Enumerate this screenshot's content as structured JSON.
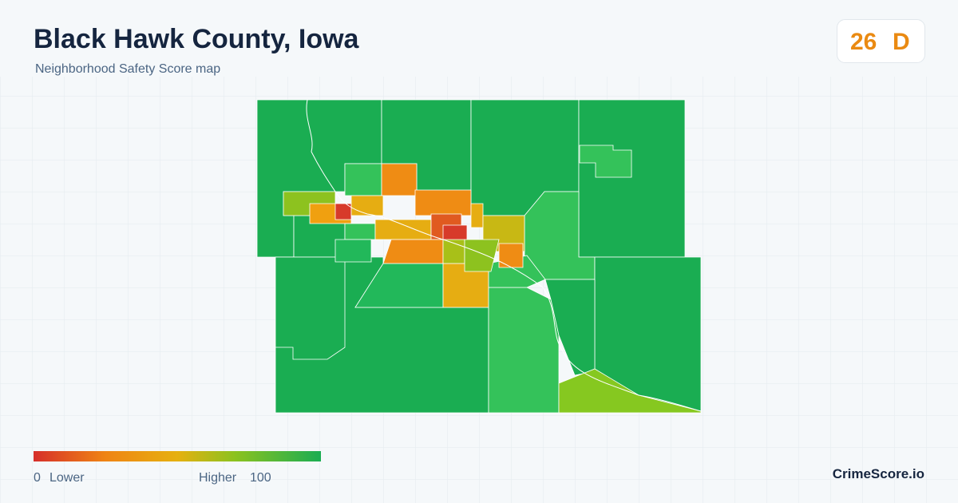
{
  "header": {
    "title": "Black Hawk County, Iowa",
    "subtitle": "Neighborhood Safety Score map"
  },
  "score": {
    "value": 26,
    "grade": "D"
  },
  "legend": {
    "min": 0,
    "min_label": "Lower",
    "max_label": "Higher",
    "max": 100
  },
  "footer": {
    "brand": "CrimeScore.io"
  }
}
